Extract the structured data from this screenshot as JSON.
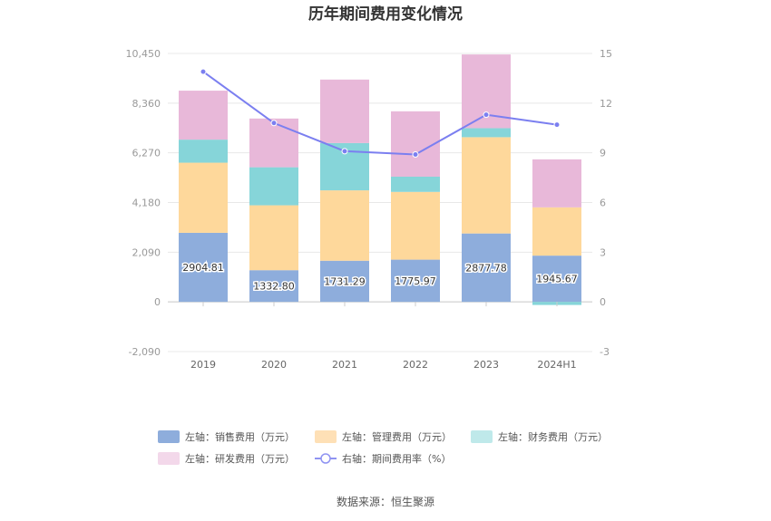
{
  "chart_data": {
    "type": "bar",
    "title": "历年期间费用变化情况",
    "categories": [
      "2019",
      "2020",
      "2021",
      "2022",
      "2023",
      "2024H1"
    ],
    "stacked": true,
    "left_axis": {
      "ylim": [
        -2090,
        10450
      ],
      "ticks": [
        -2090,
        0,
        2090,
        4180,
        6270,
        8360,
        10450
      ],
      "tick_labels": [
        "-2,090",
        "0",
        "2,090",
        "4,180",
        "6,270",
        "8,360",
        "10,450"
      ]
    },
    "right_axis": {
      "ylim": [
        -3,
        15
      ],
      "ticks": [
        -3,
        0,
        3,
        6,
        9,
        12,
        15
      ],
      "tick_labels": [
        "-3",
        "0",
        "3",
        "6",
        "9",
        "12",
        "15"
      ]
    },
    "series": [
      {
        "name": "左轴：销售费用（万元）",
        "type": "bar",
        "axis": "left",
        "color": "#8eaddc",
        "values": [
          2904.81,
          1332.8,
          1731.29,
          1775.97,
          2877.78,
          1945.67
        ],
        "labeled": true,
        "value_labels": [
          "2904.81",
          "1332.80",
          "1731.29",
          "1775.97",
          "2877.78",
          "1945.67"
        ]
      },
      {
        "name": "左轴：管理费用（万元）",
        "type": "bar",
        "axis": "left",
        "color": "#fed89b",
        "values": [
          2950,
          2730,
          2960,
          2850,
          4050,
          2030
        ]
      },
      {
        "name": "左轴：财务费用（万元）",
        "type": "bar",
        "axis": "left",
        "color": "#86d5d9",
        "values": [
          970,
          1600,
          1990,
          640,
          380,
          -130
        ]
      },
      {
        "name": "左轴：研发费用（万元）",
        "type": "bar",
        "axis": "left",
        "color": "#e8b8d9",
        "values": [
          2060,
          2050,
          2670,
          2750,
          3100,
          2020
        ]
      },
      {
        "name": "右轴：期间费用率（%）",
        "type": "line",
        "axis": "right",
        "color": "#7b7ff0",
        "values": [
          13.9,
          10.8,
          9.1,
          8.9,
          11.3,
          10.7
        ]
      }
    ],
    "legend": {
      "position": "bottom",
      "items": [
        {
          "label": "左轴：销售费用（万元）",
          "color": "#8eaddc",
          "kind": "box"
        },
        {
          "label": "左轴：管理费用（万元）",
          "color": "#fee0b6",
          "kind": "box"
        },
        {
          "label": "左轴：财务费用（万元）",
          "color": "#bfe9ea",
          "kind": "box"
        },
        {
          "label": "左轴：研发费用（万元）",
          "color": "#f3d8ea",
          "kind": "box"
        },
        {
          "label": "右轴：期间费用率（%）",
          "color": "#8f93f2",
          "kind": "line"
        }
      ]
    },
    "source": "数据来源：恒生聚源"
  }
}
